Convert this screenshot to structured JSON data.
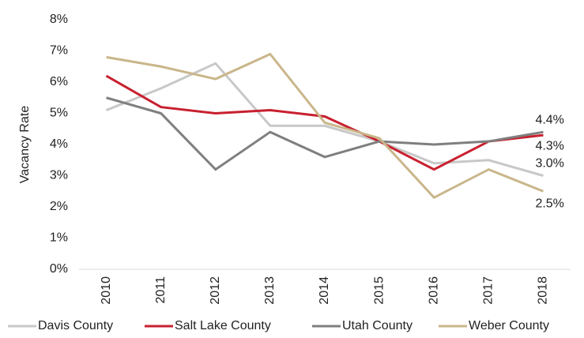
{
  "chart_data": {
    "type": "line",
    "y_label": "Vacancy Rate",
    "categories": [
      "2010",
      "2011",
      "2012",
      "2013",
      "2014",
      "2015",
      "2016",
      "2017",
      "2018"
    ],
    "ylim": [
      0,
      8
    ],
    "yticks": [
      {
        "value": 0,
        "label": "0%"
      },
      {
        "value": 1,
        "label": "1%"
      },
      {
        "value": 2,
        "label": "2%"
      },
      {
        "value": 3,
        "label": "3%"
      },
      {
        "value": 4,
        "label": "4%"
      },
      {
        "value": 5,
        "label": "5%"
      },
      {
        "value": 6,
        "label": "6%"
      },
      {
        "value": 7,
        "label": "7%"
      },
      {
        "value": 8,
        "label": "8%"
      }
    ],
    "grid": false,
    "legend": "bottom",
    "series": [
      {
        "name": "Davis County",
        "color": "#c8c8c8",
        "values": [
          5.1,
          5.8,
          6.6,
          4.6,
          4.6,
          4.1,
          3.4,
          3.5,
          3.0
        ],
        "value_labels": [
          null,
          null,
          null,
          null,
          null,
          null,
          null,
          null,
          "3.0%"
        ]
      },
      {
        "name": "Salt Lake County",
        "color": "#c8202f",
        "values": [
          6.2,
          5.2,
          5.0,
          5.1,
          4.9,
          4.1,
          3.2,
          4.1,
          4.3
        ],
        "value_labels": [
          null,
          null,
          null,
          null,
          null,
          null,
          null,
          null,
          "4.3%"
        ]
      },
      {
        "name": "Utah County",
        "color": "#7f7f7f",
        "values": [
          5.5,
          5.0,
          3.2,
          4.4,
          3.6,
          4.1,
          4.0,
          4.1,
          4.4
        ],
        "value_labels": [
          null,
          null,
          null,
          null,
          null,
          null,
          null,
          null,
          "4.4%"
        ]
      },
      {
        "name": "Weber County",
        "color": "#c9b68a",
        "values": [
          6.8,
          6.5,
          6.1,
          6.9,
          4.7,
          4.2,
          2.3,
          3.2,
          2.5
        ],
        "value_labels": [
          null,
          null,
          null,
          null,
          null,
          null,
          null,
          null,
          "2.5%"
        ]
      }
    ]
  }
}
